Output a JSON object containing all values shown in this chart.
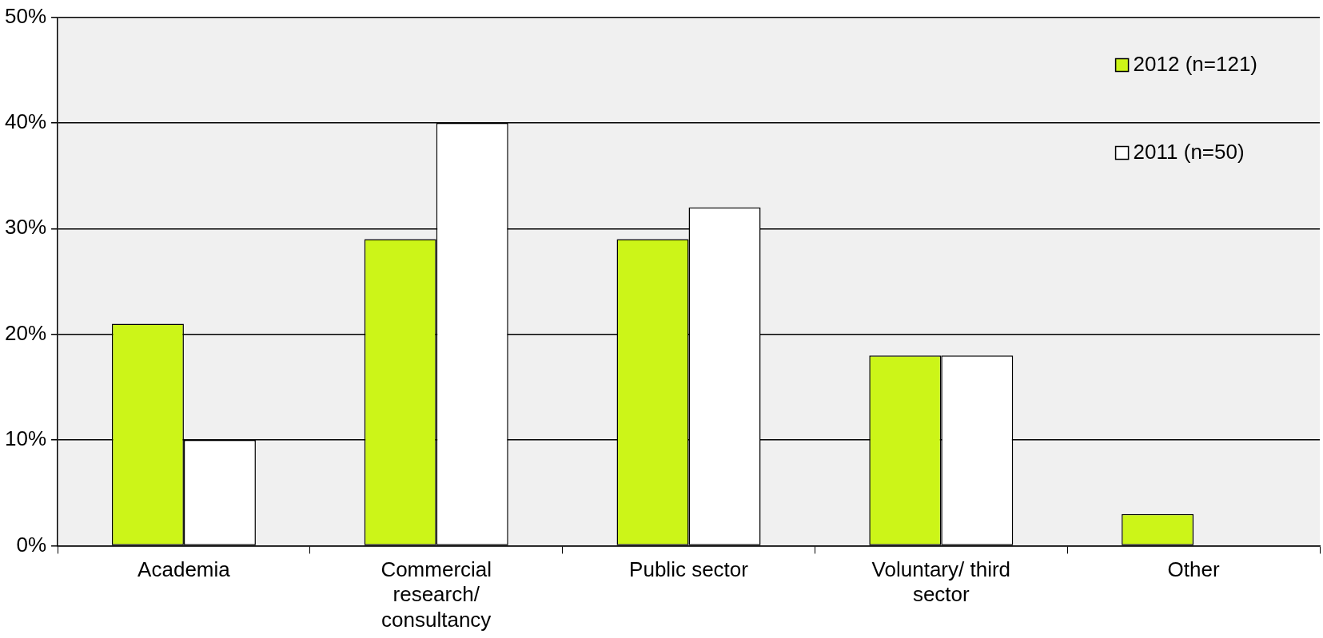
{
  "chart_data": {
    "type": "bar",
    "categories": [
      "Academia",
      "Commercial research/ consultancy",
      "Public sector",
      "Voluntary/ third sector",
      "Other"
    ],
    "series": [
      {
        "name": "2012 (n=121)",
        "color": "#ccf518",
        "values": [
          21,
          29,
          29,
          18,
          3
        ]
      },
      {
        "name": "2011 (n=50)",
        "color": "#ffffff",
        "values": [
          10,
          40,
          32,
          18,
          0
        ]
      }
    ],
    "ylim": [
      0,
      50
    ],
    "yticks": [
      {
        "value": 0,
        "label": "0%"
      },
      {
        "value": 10,
        "label": "10%"
      },
      {
        "value": 20,
        "label": "20%"
      },
      {
        "value": 30,
        "label": "30%"
      },
      {
        "value": 40,
        "label": "40%"
      },
      {
        "value": 50,
        "label": "50%"
      }
    ],
    "grid": "y",
    "legend": "top right"
  }
}
